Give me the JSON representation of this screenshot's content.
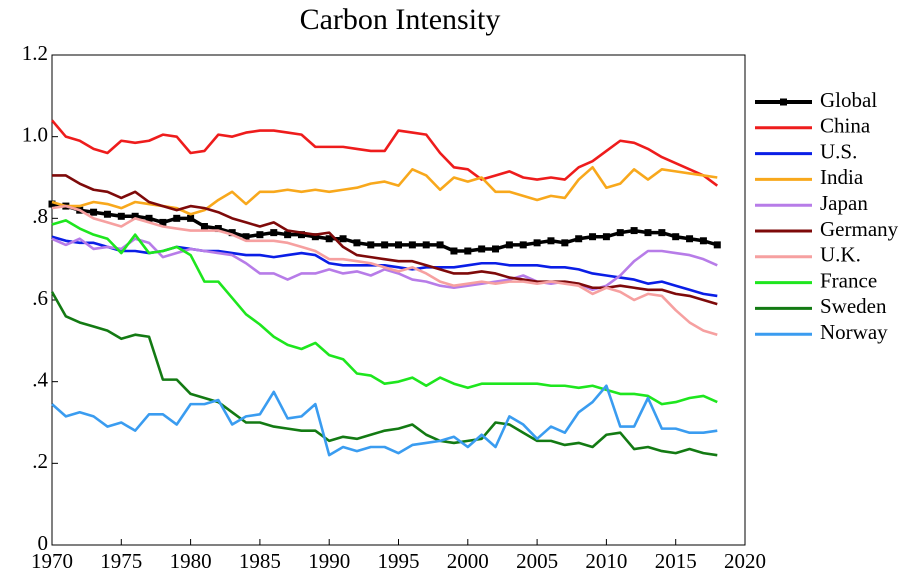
{
  "chart_data": {
    "type": "line",
    "title": "Carbon Intensity",
    "x": [
      1970,
      1971,
      1972,
      1973,
      1974,
      1975,
      1976,
      1977,
      1978,
      1979,
      1980,
      1981,
      1982,
      1983,
      1984,
      1985,
      1986,
      1987,
      1988,
      1989,
      1990,
      1991,
      1992,
      1993,
      1994,
      1995,
      1996,
      1997,
      1998,
      1999,
      2000,
      2001,
      2002,
      2003,
      2004,
      2005,
      2006,
      2007,
      2008,
      2009,
      2010,
      2011,
      2012,
      2013,
      2014,
      2015,
      2016,
      2017,
      2018
    ],
    "xlim": [
      1970,
      2020
    ],
    "xticks": [
      1970,
      1975,
      1980,
      1985,
      1990,
      1995,
      2000,
      2005,
      2010,
      2015,
      2020
    ],
    "ylim": [
      0,
      1.2
    ],
    "yticks": [
      0,
      {
        "value": 0.2,
        "label": ".2"
      },
      {
        "value": 0.4,
        "label": ".4"
      },
      {
        "value": 0.6,
        "label": ".6"
      },
      {
        "value": 0.8,
        "label": ".8"
      },
      {
        "value": 1.0,
        "label": "1.0"
      },
      1.2
    ],
    "legend": "right",
    "series": [
      {
        "name": "Global",
        "color": "#000000",
        "markers": true,
        "values": [
          0.835,
          0.83,
          0.82,
          0.815,
          0.81,
          0.805,
          0.805,
          0.8,
          0.79,
          0.8,
          0.8,
          0.78,
          0.775,
          0.765,
          0.755,
          0.76,
          0.765,
          0.76,
          0.76,
          0.755,
          0.75,
          0.75,
          0.74,
          0.735,
          0.735,
          0.735,
          0.735,
          0.735,
          0.735,
          0.72,
          0.72,
          0.725,
          0.725,
          0.735,
          0.735,
          0.74,
          0.745,
          0.74,
          0.75,
          0.755,
          0.755,
          0.765,
          0.77,
          0.765,
          0.765,
          0.755,
          0.75,
          0.745,
          0.735
        ]
      },
      {
        "name": "China",
        "color": "#ee1c1c",
        "values": [
          1.04,
          1.0,
          0.99,
          0.97,
          0.96,
          0.99,
          0.985,
          0.99,
          1.005,
          1.0,
          0.96,
          0.965,
          1.005,
          1.0,
          1.01,
          1.015,
          1.015,
          1.01,
          1.005,
          0.975,
          0.975,
          0.975,
          0.97,
          0.965,
          0.965,
          1.015,
          1.01,
          1.005,
          0.96,
          0.925,
          0.92,
          0.895,
          0.905,
          0.915,
          0.9,
          0.895,
          0.9,
          0.895,
          0.925,
          0.94,
          0.965,
          0.99,
          0.985,
          0.97,
          0.95,
          0.935,
          0.92,
          0.905,
          0.88
        ]
      },
      {
        "name": "U.S.",
        "color": "#0a1ee6",
        "values": [
          0.755,
          0.745,
          0.74,
          0.74,
          0.73,
          0.72,
          0.72,
          0.715,
          0.72,
          0.73,
          0.725,
          0.72,
          0.72,
          0.715,
          0.71,
          0.71,
          0.705,
          0.71,
          0.715,
          0.71,
          0.69,
          0.685,
          0.685,
          0.685,
          0.685,
          0.68,
          0.675,
          0.68,
          0.68,
          0.68,
          0.685,
          0.69,
          0.69,
          0.685,
          0.685,
          0.685,
          0.68,
          0.68,
          0.675,
          0.665,
          0.66,
          0.655,
          0.65,
          0.64,
          0.645,
          0.635,
          0.625,
          0.615,
          0.61
        ]
      },
      {
        "name": "India",
        "color": "#f8a81c",
        "values": [
          0.84,
          0.83,
          0.83,
          0.84,
          0.835,
          0.825,
          0.84,
          0.835,
          0.83,
          0.825,
          0.81,
          0.82,
          0.845,
          0.865,
          0.835,
          0.865,
          0.865,
          0.87,
          0.865,
          0.87,
          0.865,
          0.87,
          0.875,
          0.885,
          0.89,
          0.88,
          0.92,
          0.905,
          0.87,
          0.9,
          0.89,
          0.9,
          0.865,
          0.865,
          0.855,
          0.845,
          0.855,
          0.85,
          0.895,
          0.925,
          0.875,
          0.885,
          0.92,
          0.895,
          0.92,
          0.915,
          0.91,
          0.905,
          0.9
        ]
      },
      {
        "name": "Japan",
        "color": "#b77ce8",
        "values": [
          0.75,
          0.735,
          0.75,
          0.725,
          0.73,
          0.725,
          0.75,
          0.74,
          0.705,
          0.715,
          0.725,
          0.72,
          0.715,
          0.71,
          0.69,
          0.665,
          0.665,
          0.65,
          0.665,
          0.665,
          0.675,
          0.665,
          0.67,
          0.66,
          0.675,
          0.665,
          0.65,
          0.645,
          0.635,
          0.63,
          0.635,
          0.64,
          0.645,
          0.65,
          0.66,
          0.645,
          0.64,
          0.645,
          0.64,
          0.625,
          0.635,
          0.66,
          0.695,
          0.72,
          0.72,
          0.715,
          0.71,
          0.7,
          0.685
        ]
      },
      {
        "name": "Germany",
        "color": "#7e0a0a",
        "values": [
          0.905,
          0.905,
          0.885,
          0.87,
          0.865,
          0.85,
          0.865,
          0.84,
          0.83,
          0.82,
          0.83,
          0.825,
          0.815,
          0.8,
          0.79,
          0.78,
          0.79,
          0.77,
          0.765,
          0.76,
          0.765,
          0.73,
          0.71,
          0.705,
          0.7,
          0.695,
          0.695,
          0.685,
          0.675,
          0.665,
          0.665,
          0.67,
          0.665,
          0.655,
          0.65,
          0.645,
          0.645,
          0.645,
          0.64,
          0.63,
          0.63,
          0.635,
          0.63,
          0.625,
          0.625,
          0.615,
          0.61,
          0.6,
          0.59
        ]
      },
      {
        "name": "U.K.",
        "color": "#f6a0a0",
        "values": [
          0.825,
          0.83,
          0.82,
          0.8,
          0.79,
          0.78,
          0.8,
          0.79,
          0.78,
          0.775,
          0.77,
          0.77,
          0.77,
          0.76,
          0.745,
          0.745,
          0.745,
          0.74,
          0.73,
          0.72,
          0.7,
          0.7,
          0.695,
          0.69,
          0.68,
          0.67,
          0.68,
          0.665,
          0.645,
          0.635,
          0.64,
          0.645,
          0.64,
          0.645,
          0.645,
          0.64,
          0.645,
          0.64,
          0.635,
          0.615,
          0.63,
          0.62,
          0.6,
          0.615,
          0.61,
          0.575,
          0.545,
          0.525,
          0.515
        ]
      },
      {
        "name": "France",
        "color": "#1ee61e",
        "values": [
          0.785,
          0.795,
          0.775,
          0.76,
          0.75,
          0.715,
          0.76,
          0.715,
          0.72,
          0.73,
          0.71,
          0.645,
          0.645,
          0.605,
          0.565,
          0.54,
          0.51,
          0.49,
          0.48,
          0.495,
          0.465,
          0.455,
          0.42,
          0.415,
          0.395,
          0.4,
          0.41,
          0.39,
          0.41,
          0.395,
          0.385,
          0.395,
          0.395,
          0.395,
          0.395,
          0.395,
          0.39,
          0.39,
          0.385,
          0.39,
          0.38,
          0.37,
          0.37,
          0.365,
          0.345,
          0.35,
          0.36,
          0.365,
          0.35
        ]
      },
      {
        "name": "Sweden",
        "color": "#137a13",
        "values": [
          0.62,
          0.56,
          0.545,
          0.535,
          0.525,
          0.505,
          0.515,
          0.51,
          0.405,
          0.405,
          0.37,
          0.36,
          0.35,
          0.325,
          0.3,
          0.3,
          0.29,
          0.285,
          0.28,
          0.28,
          0.255,
          0.265,
          0.26,
          0.27,
          0.28,
          0.285,
          0.295,
          0.27,
          0.255,
          0.25,
          0.255,
          0.26,
          0.3,
          0.295,
          0.275,
          0.255,
          0.255,
          0.245,
          0.25,
          0.24,
          0.27,
          0.275,
          0.235,
          0.24,
          0.23,
          0.225,
          0.235,
          0.225,
          0.22
        ]
      },
      {
        "name": "Norway",
        "color": "#3a9cf0",
        "values": [
          0.345,
          0.315,
          0.325,
          0.315,
          0.29,
          0.3,
          0.28,
          0.32,
          0.32,
          0.295,
          0.345,
          0.345,
          0.355,
          0.295,
          0.315,
          0.32,
          0.375,
          0.31,
          0.315,
          0.345,
          0.22,
          0.24,
          0.23,
          0.24,
          0.24,
          0.225,
          0.245,
          0.25,
          0.255,
          0.265,
          0.24,
          0.27,
          0.24,
          0.315,
          0.295,
          0.26,
          0.29,
          0.275,
          0.325,
          0.35,
          0.39,
          0.29,
          0.29,
          0.36,
          0.285,
          0.285,
          0.275,
          0.275,
          0.28
        ]
      }
    ]
  }
}
